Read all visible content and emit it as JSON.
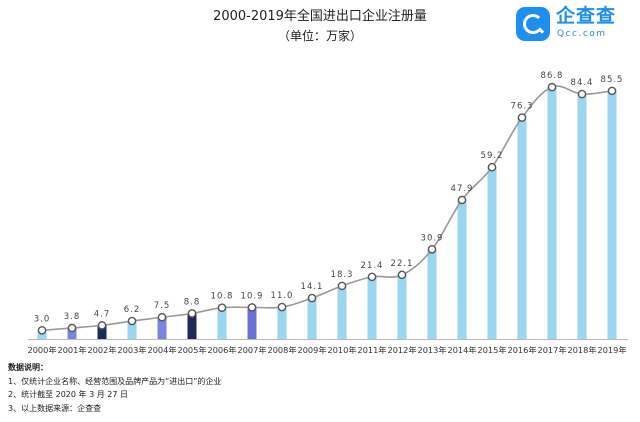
{
  "chart_data": {
    "type": "bar",
    "title": "2000-2019年全国进出口企业注册量",
    "subtitle": "（单位：万家）",
    "categories": [
      "2000年",
      "2001年",
      "2002年",
      "2003年",
      "2004年",
      "2005年",
      "2006年",
      "2007年",
      "2008年",
      "2009年",
      "2010年",
      "2011年",
      "2012年",
      "2013年",
      "2014年",
      "2015年",
      "2016年",
      "2017年",
      "2018年",
      "2019年"
    ],
    "values": [
      3.0,
      3.8,
      4.7,
      6.2,
      7.5,
      8.8,
      10.8,
      10.9,
      11.0,
      14.1,
      18.3,
      21.4,
      22.1,
      30.9,
      47.9,
      59.2,
      76.3,
      86.8,
      84.4,
      85.5
    ],
    "value_labels": [
      "3.0",
      "3.8",
      "4.7",
      "6.2",
      "7.5",
      "8.8",
      "10.8",
      "10.9",
      "11.0",
      "14.1",
      "18.3",
      "21.4",
      "22.1",
      "30.9",
      "47.9",
      "59.2",
      "76.3",
      "86.8",
      "84.4",
      "85.5"
    ],
    "bar_colors": [
      "#9ad6ef",
      "#7a85e0",
      "#1e2a5a",
      "#9ad6ef",
      "#7a85e0",
      "#1e2a5a",
      "#9ad6ef",
      "#6a71d4",
      "#9ad6ef",
      "#9ad6ef",
      "#9ad6ef",
      "#9ad6ef",
      "#9ad6ef",
      "#9ad6ef",
      "#9ad6ef",
      "#9ad6ef",
      "#9ad6ef",
      "#9ad6ef",
      "#9ad6ef",
      "#9ad6ef"
    ],
    "line_overlay": true,
    "ylim": [
      0,
      92
    ],
    "xlabel": "",
    "ylabel": "",
    "grid": false
  },
  "logo": {
    "name": "企查查",
    "domain": "Qcc.com",
    "brand_color": "#1f8ef1"
  },
  "notes": {
    "title": "数据说明：",
    "items": [
      "1、仅统计企业名称、经营范围及品牌产品为“进出口”的企业",
      "2、统计截至 2020 年 3 月 27 日",
      "3、以上数据来源：企查查"
    ]
  },
  "colors": {
    "line": "#999999",
    "marker_fill": "#ffffff",
    "marker_stroke": "#555555",
    "label": "#444444",
    "axis": "#bbbbbb"
  }
}
